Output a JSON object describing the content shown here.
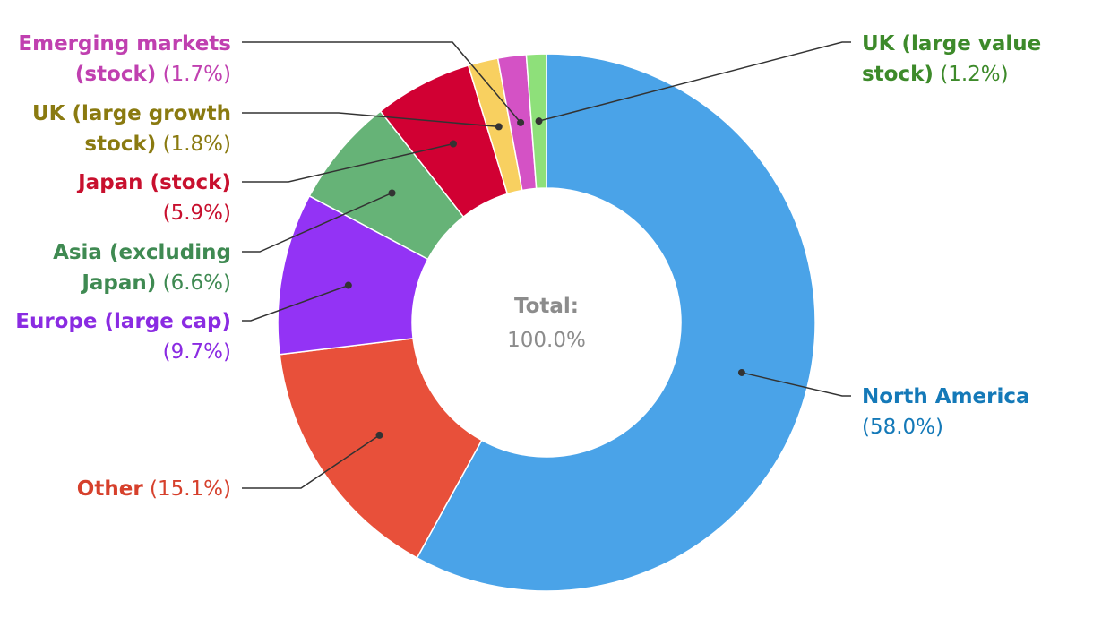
{
  "chart_data": {
    "type": "pie",
    "donut": true,
    "center_title": "Total:",
    "center_value": "100.0%",
    "center_color": "#8c8c8c",
    "leader_color": "#333333",
    "slices": [
      {
        "key": "na",
        "label_lines": [
          "North America"
        ],
        "pct_text": "(58.0%)",
        "value": 58.0,
        "color": "#4aa3e8",
        "text_color": "#1479b8"
      },
      {
        "key": "oth",
        "label_lines": [
          "Other"
        ],
        "pct_text": "(15.1%)",
        "value": 15.1,
        "color": "#e8503a",
        "text_color": "#d6402c"
      },
      {
        "key": "eur",
        "label_lines": [
          "Europe (large cap)"
        ],
        "pct_text": "(9.7%)",
        "value": 9.7,
        "color": "#9333f5",
        "text_color": "#8a2be2"
      },
      {
        "key": "asia",
        "label_lines": [
          "Asia (excluding",
          "Japan)"
        ],
        "pct_text": "(6.6%)",
        "value": 6.6,
        "color": "#66b377",
        "text_color": "#3f8a52"
      },
      {
        "key": "jp",
        "label_lines": [
          "Japan (stock)"
        ],
        "pct_text": "(5.9%)",
        "value": 5.9,
        "color": "#d10033",
        "text_color": "#c8102e"
      },
      {
        "key": "ukg",
        "label_lines": [
          "UK (large growth",
          "stock)"
        ],
        "pct_text": "(1.8%)",
        "value": 1.8,
        "color": "#f8d060",
        "text_color": "#8a7a10"
      },
      {
        "key": "em",
        "label_lines": [
          "Emerging markets",
          "(stock)"
        ],
        "pct_text": "(1.7%)",
        "value": 1.7,
        "color": "#d452c5",
        "text_color": "#c040b0"
      },
      {
        "key": "ukv",
        "label_lines": [
          "UK (large value",
          "stock)"
        ],
        "pct_text": "(1.2%)",
        "value": 1.2,
        "color": "#8ee07a",
        "text_color": "#3d8a2a"
      }
    ]
  }
}
